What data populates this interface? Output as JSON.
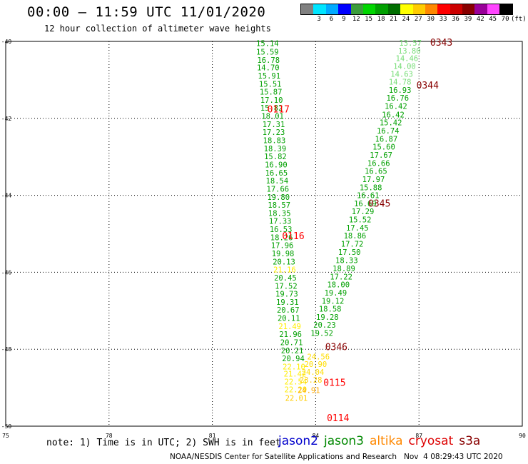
{
  "header": {
    "title": "00:00 – 11:59 UTC 11/01/2020",
    "subtitle": "12 hour collection of altimeter wave heights"
  },
  "color_scale": {
    "unit_label": "(ft)",
    "stops": [
      {
        "label": "",
        "color": "#808080"
      },
      {
        "label": "3",
        "color": "#00e5ff"
      },
      {
        "label": "6",
        "color": "#00aaff"
      },
      {
        "label": "9",
        "color": "#0000ff"
      },
      {
        "label": "12",
        "color": "#3b9c3b"
      },
      {
        "label": "15",
        "color": "#00d600"
      },
      {
        "label": "18",
        "color": "#00a000"
      },
      {
        "label": "21",
        "color": "#006e00"
      },
      {
        "label": "24",
        "color": "#ffff00"
      },
      {
        "label": "27",
        "color": "#ffcc00"
      },
      {
        "label": "30",
        "color": "#ff8800"
      },
      {
        "label": "33",
        "color": "#ff0000"
      },
      {
        "label": "36",
        "color": "#cc0000"
      },
      {
        "label": "39",
        "color": "#880000"
      },
      {
        "label": "42",
        "color": "#990099"
      },
      {
        "label": "45",
        "color": "#ff44ff"
      },
      {
        "label": "70",
        "color": "#000000"
      }
    ]
  },
  "chart_data": {
    "type": "scatter",
    "xlim": [
      75,
      90
    ],
    "ylim": [
      -50,
      -40
    ],
    "x_ticks": [
      "75",
      "78",
      "81",
      "84",
      "87",
      "90"
    ],
    "y_ticks": [
      "-40",
      "-42",
      "-44",
      "-46",
      "-48",
      "-50"
    ],
    "grid": true,
    "tracks": [
      {
        "satellite": "jason3",
        "color": "#00a000",
        "points": [
          {
            "lon": 82.6,
            "lat": -40.05,
            "swh": "15.14"
          },
          {
            "lon": 82.6,
            "lat": -40.27,
            "swh": "15.59"
          },
          {
            "lon": 82.63,
            "lat": -40.48,
            "swh": "16.78"
          },
          {
            "lon": 82.62,
            "lat": -40.68,
            "swh": "14.70"
          },
          {
            "lon": 82.65,
            "lat": -40.89,
            "swh": "15.91"
          },
          {
            "lon": 82.68,
            "lat": -41.1,
            "swh": "15.51"
          },
          {
            "lon": 82.7,
            "lat": -41.31,
            "swh": "15.87"
          },
          {
            "lon": 82.72,
            "lat": -41.52,
            "swh": "17.10"
          },
          {
            "lon": 82.72,
            "lat": -41.73,
            "swh": "15.82"
          },
          {
            "lon": 82.75,
            "lat": -41.94,
            "swh": "18.01"
          },
          {
            "lon": 82.78,
            "lat": -42.15,
            "swh": "17.31"
          },
          {
            "lon": 82.78,
            "lat": -42.36,
            "swh": "17.23"
          },
          {
            "lon": 82.8,
            "lat": -42.57,
            "swh": "18.83"
          },
          {
            "lon": 82.82,
            "lat": -42.78,
            "swh": "18.39"
          },
          {
            "lon": 82.83,
            "lat": -42.99,
            "swh": "15.82"
          },
          {
            "lon": 82.85,
            "lat": -43.2,
            "swh": "16.90"
          },
          {
            "lon": 82.86,
            "lat": -43.41,
            "swh": "16.65"
          },
          {
            "lon": 82.88,
            "lat": -43.62,
            "swh": "18.54"
          },
          {
            "lon": 82.9,
            "lat": -43.83,
            "swh": "17.66"
          },
          {
            "lon": 82.92,
            "lat": -44.04,
            "swh": "19.80"
          },
          {
            "lon": 82.94,
            "lat": -44.25,
            "swh": "18.57"
          },
          {
            "lon": 82.95,
            "lat": -44.46,
            "swh": "18.35"
          },
          {
            "lon": 82.97,
            "lat": -44.67,
            "swh": "17.33"
          },
          {
            "lon": 82.99,
            "lat": -44.88,
            "swh": "16.53"
          },
          {
            "lon": 83.01,
            "lat": -45.09,
            "swh": "18.26"
          },
          {
            "lon": 83.03,
            "lat": -45.3,
            "swh": "17.96"
          },
          {
            "lon": 83.05,
            "lat": -45.51,
            "swh": "19.98"
          },
          {
            "lon": 83.08,
            "lat": -45.72,
            "swh": "20.13"
          },
          {
            "lon": 83.1,
            "lat": -45.93,
            "swh": "21.16",
            "color": "#ffee00"
          },
          {
            "lon": 83.12,
            "lat": -46.14,
            "swh": "20.45"
          },
          {
            "lon": 83.14,
            "lat": -46.35,
            "swh": "17.52"
          },
          {
            "lon": 83.16,
            "lat": -46.56,
            "swh": "19.73"
          },
          {
            "lon": 83.18,
            "lat": -46.77,
            "swh": "19.31"
          },
          {
            "lon": 83.2,
            "lat": -46.98,
            "swh": "20.67"
          },
          {
            "lon": 83.22,
            "lat": -47.19,
            "swh": "20.11"
          },
          {
            "lon": 83.25,
            "lat": -47.4,
            "swh": "21.49",
            "color": "#ffee00"
          },
          {
            "lon": 83.27,
            "lat": -47.61,
            "swh": "21.96"
          },
          {
            "lon": 83.3,
            "lat": -47.82,
            "swh": "20.71"
          },
          {
            "lon": 83.32,
            "lat": -48.03,
            "swh": "20.21"
          },
          {
            "lon": 83.35,
            "lat": -48.24,
            "swh": "20.94"
          },
          {
            "lon": 83.37,
            "lat": -48.45,
            "swh": "22.10",
            "color": "#ffee00"
          },
          {
            "lon": 83.4,
            "lat": -48.64,
            "swh": "21.42",
            "color": "#ffee00"
          },
          {
            "lon": 83.42,
            "lat": -48.84,
            "swh": "22.54",
            "color": "#ffee00"
          },
          {
            "lon": 83.42,
            "lat": -49.04,
            "swh": "22.29",
            "color": "#ffee00"
          },
          {
            "lon": 83.44,
            "lat": -49.27,
            "swh": "22.01",
            "color": "#ffcc00"
          }
        ]
      },
      {
        "satellite": "jason3",
        "color": "#00a000",
        "points": [
          {
            "lon": 86.75,
            "lat": -40.04,
            "swh": "13.57",
            "color": "#77dd77"
          },
          {
            "lon": 86.72,
            "lat": -40.24,
            "swh": "13.80",
            "color": "#77dd77"
          },
          {
            "lon": 86.65,
            "lat": -40.44,
            "swh": "14.46",
            "color": "#77dd77"
          },
          {
            "lon": 86.58,
            "lat": -40.64,
            "swh": "14.00",
            "color": "#77dd77"
          },
          {
            "lon": 86.5,
            "lat": -40.84,
            "swh": "14.63",
            "color": "#77dd77"
          },
          {
            "lon": 86.45,
            "lat": -41.05,
            "swh": "14.78",
            "color": "#77dd77"
          },
          {
            "lon": 86.45,
            "lat": -41.26,
            "swh": "16.93"
          },
          {
            "lon": 86.38,
            "lat": -41.47,
            "swh": "16.76"
          },
          {
            "lon": 86.33,
            "lat": -41.68,
            "swh": "16.42"
          },
          {
            "lon": 86.25,
            "lat": -41.9,
            "swh": "16.42"
          },
          {
            "lon": 86.18,
            "lat": -42.11,
            "swh": "15.42"
          },
          {
            "lon": 86.1,
            "lat": -42.32,
            "swh": "16.74"
          },
          {
            "lon": 86.05,
            "lat": -42.53,
            "swh": "16.87"
          },
          {
            "lon": 85.98,
            "lat": -42.74,
            "swh": "15.60"
          },
          {
            "lon": 85.9,
            "lat": -42.95,
            "swh": "17.67"
          },
          {
            "lon": 85.83,
            "lat": -43.16,
            "swh": "16.66"
          },
          {
            "lon": 85.75,
            "lat": -43.37,
            "swh": "16.65"
          },
          {
            "lon": 85.68,
            "lat": -43.58,
            "swh": "17.97"
          },
          {
            "lon": 85.6,
            "lat": -43.79,
            "swh": "15.88"
          },
          {
            "lon": 85.52,
            "lat": -44.0,
            "swh": "16.61"
          },
          {
            "lon": 85.44,
            "lat": -44.21,
            "swh": "16.69"
          },
          {
            "lon": 85.37,
            "lat": -44.42,
            "swh": "17.29"
          },
          {
            "lon": 85.29,
            "lat": -44.63,
            "swh": "15.52"
          },
          {
            "lon": 85.21,
            "lat": -44.84,
            "swh": "17.45"
          },
          {
            "lon": 85.14,
            "lat": -45.05,
            "swh": "18.86"
          },
          {
            "lon": 85.06,
            "lat": -45.26,
            "swh": "17.72"
          },
          {
            "lon": 84.98,
            "lat": -45.47,
            "swh": "17.50"
          },
          {
            "lon": 84.9,
            "lat": -45.69,
            "swh": "18.33"
          },
          {
            "lon": 84.82,
            "lat": -45.9,
            "swh": "18.89"
          },
          {
            "lon": 84.74,
            "lat": -46.11,
            "swh": "17.22"
          },
          {
            "lon": 84.66,
            "lat": -46.32,
            "swh": "18.00"
          },
          {
            "lon": 84.58,
            "lat": -46.53,
            "swh": "19.49"
          },
          {
            "lon": 84.5,
            "lat": -46.74,
            "swh": "19.12"
          },
          {
            "lon": 84.42,
            "lat": -46.95,
            "swh": "18.58"
          },
          {
            "lon": 84.34,
            "lat": -47.16,
            "swh": "19.28"
          },
          {
            "lon": 84.26,
            "lat": -47.37,
            "swh": "20.23"
          },
          {
            "lon": 84.18,
            "lat": -47.58,
            "swh": "19.52"
          },
          {
            "lon": 84.08,
            "lat": -48.19,
            "swh": "24.56",
            "color": "#ffdd00"
          },
          {
            "lon": 84.0,
            "lat": -48.39,
            "swh": "20.90",
            "color": "#ffdd00"
          },
          {
            "lon": 83.92,
            "lat": -48.59,
            "swh": "24.04",
            "color": "#ffdd00"
          },
          {
            "lon": 83.86,
            "lat": -48.79,
            "swh": "23.28",
            "color": "#ffcc00"
          },
          {
            "lon": 83.8,
            "lat": -49.06,
            "swh": "24.91",
            "color": "#ffaa00"
          }
        ]
      }
    ],
    "pass_labels": [
      {
        "text": "0343",
        "lon": 87.65,
        "lat": -40.02,
        "color": "#880000"
      },
      {
        "text": "0344",
        "lon": 87.25,
        "lat": -41.13,
        "color": "#880000"
      },
      {
        "text": "0117",
        "lon": 82.92,
        "lat": -41.75,
        "color": "#ff0000"
      },
      {
        "text": "0345",
        "lon": 85.85,
        "lat": -44.2,
        "color": "#880000"
      },
      {
        "text": "0116",
        "lon": 83.35,
        "lat": -45.05,
        "color": "#ff0000"
      },
      {
        "text": "0346",
        "lon": 84.6,
        "lat": -47.93,
        "color": "#880000"
      },
      {
        "text": "0115",
        "lon": 84.55,
        "lat": -48.86,
        "color": "#ff0000"
      },
      {
        "text": "0114",
        "lon": 84.65,
        "lat": -49.78,
        "color": "#ff0000"
      }
    ]
  },
  "footer": {
    "note": "note: 1) Time is in UTC; 2) SWH is in feet",
    "satellites": [
      {
        "name": "jason2",
        "color": "#0000cc"
      },
      {
        "name": "jason3",
        "color": "#008800"
      },
      {
        "name": "altika",
        "color": "#ff8800"
      },
      {
        "name": "cryosat",
        "color": "#dd0000"
      },
      {
        "name": "s3a",
        "color": "#880000"
      }
    ],
    "credit": "NOAA/NESDIS Center for Satellite Applications and Research   Nov  4 08:29:43 UTC 2020"
  }
}
